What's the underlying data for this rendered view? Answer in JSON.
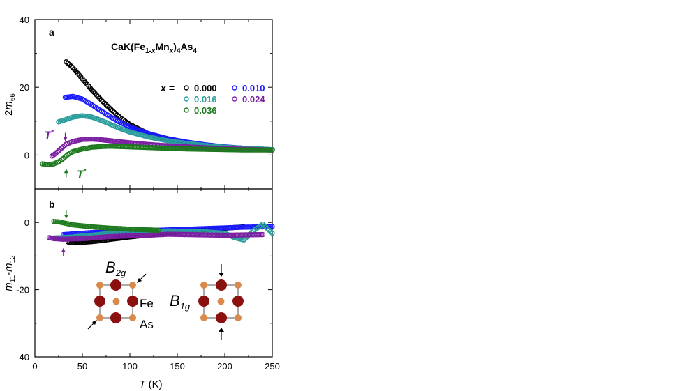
{
  "figure": {
    "compound": "CaK(Fe1-xMn)4As4",
    "legend_prefix": "x =",
    "T_marker": "T*"
  },
  "chart_data": [
    {
      "type": "scatter",
      "panel_label": "a",
      "ylabel": "2m66",
      "xlabel": "",
      "xlim": [
        0,
        250
      ],
      "ylim": [
        -10,
        40
      ],
      "xticks": [
        0,
        50,
        100,
        150,
        200,
        250
      ],
      "yticks": [
        0,
        20,
        40
      ],
      "legend_position": "top-right",
      "series": [
        {
          "name": "0.000",
          "color": "#000000",
          "x": [
            33,
            40,
            50,
            60,
            70,
            80,
            90,
            100,
            120,
            140,
            160,
            180,
            200,
            220,
            250
          ],
          "y": [
            27.5,
            25.8,
            22.5,
            19.2,
            16.2,
            13.5,
            11.0,
            9.0,
            6.2,
            4.5,
            3.3,
            2.6,
            2.1,
            1.8,
            1.5
          ]
        },
        {
          "name": "0.010",
          "color": "#1a1aff",
          "x": [
            32,
            40,
            50,
            60,
            70,
            80,
            90,
            100,
            120,
            140,
            160,
            180,
            200,
            220,
            250
          ],
          "y": [
            17.0,
            17.3,
            16.5,
            14.8,
            13.0,
            11.2,
            9.6,
            8.3,
            6.3,
            4.8,
            3.8,
            3.0,
            2.4,
            2.0,
            1.6
          ]
        },
        {
          "name": "0.016",
          "color": "#2a9d9d",
          "x": [
            25,
            30,
            40,
            50,
            60,
            70,
            80,
            90,
            100,
            120,
            140,
            160,
            180,
            200,
            220,
            250
          ],
          "y": [
            9.8,
            10.2,
            11.2,
            11.6,
            11.2,
            10.2,
            9.0,
            7.8,
            6.8,
            5.3,
            4.2,
            3.4,
            2.8,
            2.3,
            2.0,
            1.6
          ]
        },
        {
          "name": "0.024",
          "color": "#7b1fa2",
          "x": [
            18,
            22,
            28,
            33,
            40,
            50,
            60,
            70,
            80,
            90,
            100,
            120,
            140,
            160,
            180,
            200,
            220,
            250
          ],
          "y": [
            -0.3,
            0.5,
            2.0,
            3.2,
            4.0,
            4.6,
            4.7,
            4.5,
            4.2,
            3.9,
            3.6,
            3.1,
            2.7,
            2.4,
            2.1,
            1.9,
            1.7,
            1.5
          ]
        },
        {
          "name": "0.036",
          "color": "#1e7a1e",
          "x": [
            8,
            15,
            20,
            25,
            30,
            35,
            40,
            50,
            60,
            70,
            80,
            100,
            120,
            140,
            160,
            180,
            200,
            220,
            250
          ],
          "y": [
            -2.6,
            -2.8,
            -2.6,
            -2.0,
            -1.0,
            0.2,
            1.0,
            1.8,
            2.3,
            2.5,
            2.6,
            2.4,
            2.2,
            2.0,
            1.8,
            1.7,
            1.6,
            1.5,
            1.5
          ]
        }
      ],
      "annotations": [
        {
          "text": "T*",
          "color": "#7b1fa2",
          "x": 32,
          "y": 4.5,
          "arrow": "down",
          "label_side": "left"
        },
        {
          "text": "T*",
          "color": "#1e7a1e",
          "x": 33,
          "y": -4.5,
          "arrow": "up",
          "label_side": "right"
        }
      ]
    },
    {
      "type": "scatter",
      "panel_label": "b",
      "ylabel": "m11-m12",
      "xlabel": "T (K)",
      "xlim": [
        0,
        250
      ],
      "ylim": [
        -40,
        10
      ],
      "xticks": [
        0,
        50,
        100,
        150,
        200,
        250
      ],
      "yticks": [
        -40,
        -20,
        0
      ],
      "series": [
        {
          "name": "0.000",
          "color": "#000000",
          "x": [
            35,
            40,
            50,
            60,
            70,
            80,
            100,
            120,
            140,
            160,
            180,
            200,
            220
          ],
          "y": [
            -5.8,
            -6.0,
            -5.9,
            -5.7,
            -5.4,
            -5.0,
            -4.3,
            -3.7,
            -3.1,
            -2.6,
            -2.1,
            -1.7,
            -1.3
          ]
        },
        {
          "name": "0.010",
          "color": "#1a1aff",
          "x": [
            30,
            40,
            50,
            60,
            70,
            80,
            100,
            120,
            140,
            160,
            180,
            200,
            220,
            240,
            250
          ],
          "y": [
            -3.6,
            -3.4,
            -3.2,
            -3.0,
            -2.9,
            -2.8,
            -2.6,
            -2.4,
            -2.2,
            -2.0,
            -1.8,
            -1.6,
            -1.4,
            -1.3,
            -1.2
          ]
        },
        {
          "name": "0.016",
          "color": "#2a9d9d",
          "x": [
            20,
            30,
            40,
            50,
            60,
            70,
            80,
            100,
            120,
            140,
            180,
            200,
            210,
            220,
            230,
            240,
            250
          ],
          "y": [
            -4.6,
            -4.5,
            -4.3,
            -4.0,
            -3.8,
            -3.5,
            -3.2,
            -2.9,
            -2.7,
            -2.5,
            -2.8,
            -3.2,
            -4.5,
            -5.2,
            -2.5,
            -0.5,
            -3.2
          ]
        },
        {
          "name": "0.024",
          "color": "#7b1fa2",
          "x": [
            15,
            20,
            30,
            40,
            50,
            60,
            70,
            80,
            100,
            120,
            140,
            180,
            200,
            220,
            240
          ],
          "y": [
            -4.5,
            -4.8,
            -5.0,
            -4.9,
            -4.8,
            -4.6,
            -4.4,
            -4.2,
            -4.0,
            -3.8,
            -3.5,
            -3.7,
            -3.8,
            -3.7,
            -3.6
          ]
        },
        {
          "name": "0.036",
          "color": "#1e7a1e",
          "x": [
            20,
            25,
            30,
            35,
            40,
            50,
            60,
            70,
            80,
            90,
            100,
            110,
            120,
            130
          ],
          "y": [
            0.3,
            0.2,
            -0.1,
            -0.4,
            -0.7,
            -1.0,
            -1.3,
            -1.5,
            -1.7,
            -1.8,
            -2.0,
            -2.1,
            -2.2,
            -2.3
          ]
        }
      ],
      "annotations": [
        {
          "text": "",
          "color": "#1e7a1e",
          "x": 33,
          "y": 1.5,
          "arrow": "down"
        },
        {
          "text": "",
          "color": "#7b1fa2",
          "x": 30,
          "y": -8.0,
          "arrow": "up"
        }
      ],
      "inset": {
        "B2g_label": "B2g",
        "B1g_label": "B1g",
        "fe_label": "Fe",
        "as_label": "As",
        "fe_color": "#8b1010",
        "as_color": "#d98a4b",
        "frame_color": "#aaaaaa"
      }
    }
  ]
}
